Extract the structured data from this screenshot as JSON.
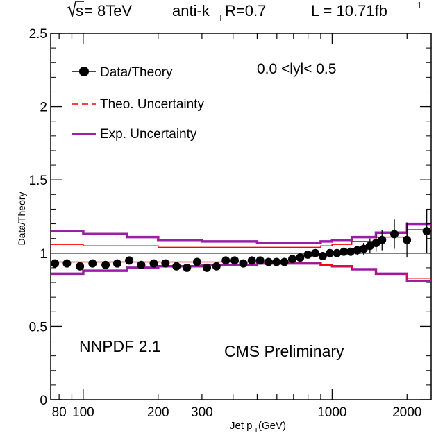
{
  "header": {
    "sqrt_s": "s",
    "sqrt_s_rest": " = 8TeV",
    "algo": "anti-k",
    "algo_sub": "T",
    "radius": " R=0.7",
    "lumi": "L = 10.71fb",
    "lumi_sup": "-1"
  },
  "annotations": {
    "rapidity": "0.0 <lyl< 0.5",
    "pdf": "NNPDF 2.1",
    "experiment": "CMS Preliminary"
  },
  "chart_data": {
    "type": "scatter",
    "xlabel_main": "Jet p",
    "xlabel_sub": "T",
    "xlabel_unit": " (GeV)",
    "ylabel": "Data/Theory",
    "xscale": "log",
    "xlim": [
      74,
      2500
    ],
    "ylim": [
      0,
      2.5
    ],
    "grid": false,
    "legend_position": "top-left",
    "reference_line": 1,
    "yticks": [
      {
        "v": 0,
        "label": "0"
      },
      {
        "v": 0.5,
        "label": "0.5"
      },
      {
        "v": 1,
        "label": "1"
      },
      {
        "v": 1.5,
        "label": "1.5"
      },
      {
        "v": 2,
        "label": "2"
      },
      {
        "v": 2.5,
        "label": "2.5"
      }
    ],
    "xticks": [
      {
        "v": 80,
        "label": "80"
      },
      {
        "v": 100,
        "label": "100"
      },
      {
        "v": 200,
        "label": "200"
      },
      {
        "v": 300,
        "label": "300"
      },
      {
        "v": 1000,
        "label": "1000"
      },
      {
        "v": 2000,
        "label": "2000"
      }
    ],
    "legend": [
      {
        "name": "Data/Theory",
        "style": "marker",
        "color": "#000000"
      },
      {
        "name": "Theo. Uncertainty",
        "style": "dashed",
        "color": "#ff0000"
      },
      {
        "name": "Exp. Uncertainty",
        "style": "solid",
        "color": "#9b1fa6"
      }
    ],
    "series": [
      {
        "name": "Data/Theory",
        "color": "#000000",
        "x": [
          77,
          86,
          97,
          109,
          123,
          137,
          153,
          171,
          192,
          214,
          237,
          261,
          287,
          314,
          343,
          374,
          406,
          440,
          476,
          514,
          555,
          598,
          643,
          692,
          744,
          799,
          856,
          917,
          980,
          1046,
          1115,
          1187,
          1262,
          1339,
          1419,
          1502,
          1587,
          1779,
          1998,
          2400
        ],
        "y": [
          0.93,
          0.93,
          0.91,
          0.93,
          0.92,
          0.93,
          0.95,
          0.92,
          0.93,
          0.93,
          0.91,
          0.9,
          0.94,
          0.9,
          0.91,
          0.95,
          0.95,
          0.93,
          0.95,
          0.95,
          0.94,
          0.94,
          0.94,
          0.96,
          0.97,
          0.99,
          1.0,
          0.98,
          1.0,
          1.0,
          1.01,
          1.01,
          1.02,
          1.03,
          1.05,
          1.07,
          1.09,
          1.13,
          1.09,
          1.15
        ],
        "err": [
          0.02,
          0.02,
          0.02,
          0.02,
          0.02,
          0.02,
          0.02,
          0.02,
          0.02,
          0.02,
          0.02,
          0.02,
          0.02,
          0.02,
          0.02,
          0.02,
          0.02,
          0.02,
          0.02,
          0.02,
          0.02,
          0.02,
          0.02,
          0.02,
          0.02,
          0.02,
          0.02,
          0.02,
          0.02,
          0.02,
          0.02,
          0.02,
          0.03,
          0.04,
          0.05,
          0.06,
          0.07,
          0.1,
          0.12,
          0.15
        ]
      },
      {
        "name": "Theo. Uncertainty",
        "color": "#ff0000",
        "x": [
          74,
          100,
          200,
          300,
          500,
          700,
          900,
          1000,
          1200,
          1500,
          2000,
          2500
        ],
        "upper": [
          1.06,
          1.05,
          1.04,
          1.04,
          1.04,
          1.04,
          1.05,
          1.06,
          1.08,
          1.11,
          1.16,
          1.21
        ],
        "lower": [
          0.94,
          0.94,
          0.94,
          0.94,
          0.94,
          0.93,
          0.92,
          0.91,
          0.89,
          0.86,
          0.83,
          0.81
        ]
      },
      {
        "name": "Exp. Uncertainty",
        "color": "#9b1fa6",
        "x": [
          74,
          100,
          150,
          200,
          300,
          500,
          700,
          900,
          1000,
          1200,
          1500,
          2000,
          2500
        ],
        "upper": [
          1.15,
          1.13,
          1.11,
          1.09,
          1.08,
          1.07,
          1.07,
          1.08,
          1.09,
          1.11,
          1.14,
          1.2,
          1.25
        ],
        "lower": [
          0.86,
          0.88,
          0.9,
          0.91,
          0.92,
          0.93,
          0.93,
          0.92,
          0.91,
          0.89,
          0.86,
          0.81,
          0.76
        ]
      }
    ]
  }
}
